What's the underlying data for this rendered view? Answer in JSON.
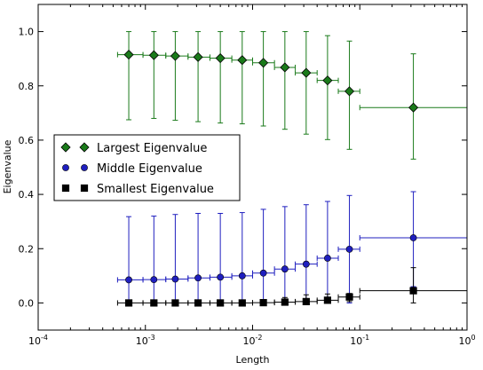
{
  "chart_data": {
    "type": "scatter",
    "xlabel": "Length",
    "ylabel": "Eigenvalue",
    "xscale": "log",
    "xlim": [
      0.0001,
      1
    ],
    "ylim": [
      -0.1,
      1.1
    ],
    "x_ticks": [
      0.0001,
      0.001,
      0.01,
      0.1,
      1
    ],
    "x_tick_labels": [
      {
        "base": "10",
        "exp": "-4"
      },
      {
        "base": "10",
        "exp": "-3"
      },
      {
        "base": "10",
        "exp": "-2"
      },
      {
        "base": "10",
        "exp": "-1"
      },
      {
        "base": "10",
        "exp": "0"
      }
    ],
    "y_ticks": [
      0.0,
      0.2,
      0.4,
      0.6,
      0.8,
      1.0
    ],
    "y_tick_labels": [
      "0.0",
      "0.2",
      "0.4",
      "0.6",
      "0.8",
      "1.0"
    ],
    "grid": false,
    "legend_position": "center-left",
    "x": [
      0.0007,
      0.0012,
      0.0019,
      0.0031,
      0.005,
      0.008,
      0.0126,
      0.02,
      0.0316,
      0.05,
      0.08,
      0.316
    ],
    "x_err_low": [
      0.00055,
      0.00095,
      0.00155,
      0.0025,
      0.004,
      0.0064,
      0.01,
      0.016,
      0.025,
      0.04,
      0.063,
      0.1
    ],
    "x_err_high": [
      0.00095,
      0.00155,
      0.0025,
      0.004,
      0.0064,
      0.01,
      0.016,
      0.025,
      0.04,
      0.063,
      0.1,
      1.0
    ],
    "series": [
      {
        "name": "Largest Eigenvalue",
        "marker": "diamond",
        "color": "#1a7a1a",
        "y": [
          0.915,
          0.913,
          0.91,
          0.906,
          0.902,
          0.895,
          0.885,
          0.868,
          0.848,
          0.82,
          0.78,
          0.72
        ],
        "y_low": [
          0.675,
          0.68,
          0.673,
          0.668,
          0.663,
          0.66,
          0.652,
          0.64,
          0.622,
          0.602,
          0.566,
          0.53
        ],
        "y_high": [
          1.0,
          1.0,
          1.0,
          1.0,
          1.0,
          1.0,
          1.0,
          1.0,
          1.0,
          0.985,
          0.965,
          0.918
        ]
      },
      {
        "name": "Middle Eigenvalue",
        "marker": "circle",
        "color": "#1f1fbf",
        "y": [
          0.085,
          0.086,
          0.088,
          0.092,
          0.095,
          0.1,
          0.11,
          0.125,
          0.143,
          0.165,
          0.198,
          0.24
        ],
        "y_low": [
          0.0,
          0.0,
          0.0,
          0.0,
          0.0,
          0.0,
          0.0,
          0.0,
          0.0,
          0.0,
          0.0,
          0.06
        ],
        "y_high": [
          0.318,
          0.32,
          0.326,
          0.33,
          0.33,
          0.333,
          0.345,
          0.355,
          0.362,
          0.374,
          0.396,
          0.41
        ]
      },
      {
        "name": "Smallest Eigenvalue",
        "marker": "square",
        "color": "#000000",
        "y": [
          0.0,
          0.0,
          0.0,
          0.0,
          0.0,
          0.0,
          0.001,
          0.003,
          0.005,
          0.01,
          0.022,
          0.045
        ],
        "y_low": [
          0.0,
          0.0,
          0.0,
          0.0,
          0.0,
          0.0,
          0.0,
          0.0,
          0.0,
          0.0,
          0.005,
          0.0
        ],
        "y_high": [
          0.005,
          0.006,
          0.007,
          0.008,
          0.009,
          0.01,
          0.012,
          0.02,
          0.03,
          0.033,
          0.035,
          0.13
        ]
      }
    ]
  }
}
